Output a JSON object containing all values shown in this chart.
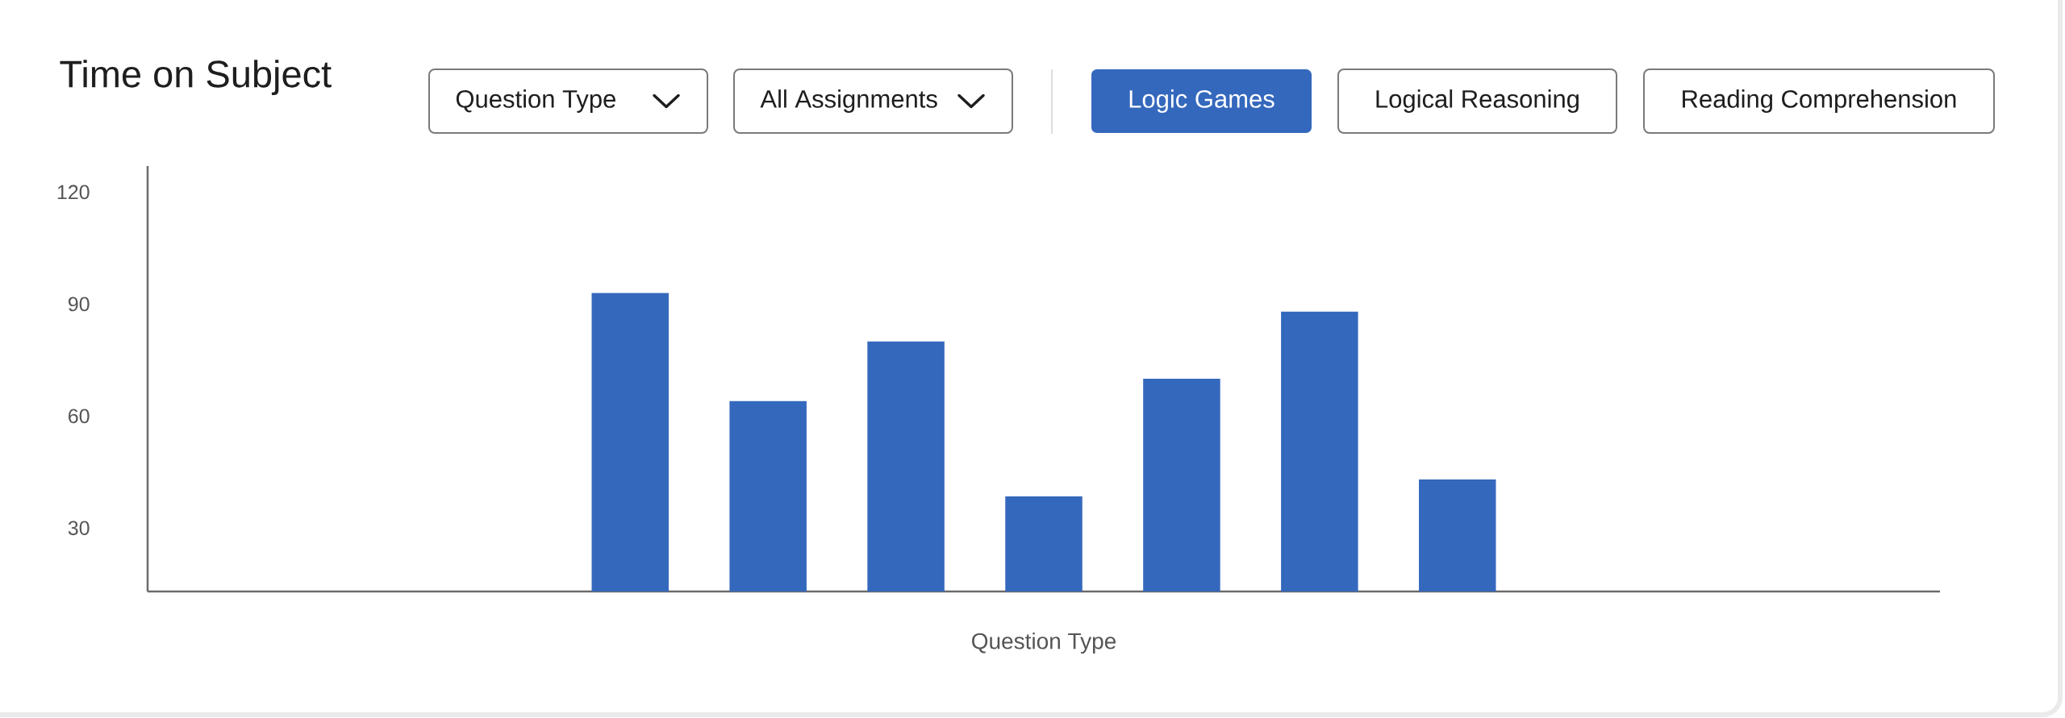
{
  "chart_data": {
    "type": "bar",
    "title": "Time on Subject",
    "xlabel": "Question Type",
    "categories": [
      null,
      null,
      null,
      null,
      null,
      null,
      null,
      null,
      null,
      null,
      null,
      null,
      null
    ],
    "values": [
      null,
      null,
      null,
      93,
      64,
      80,
      38.5,
      70,
      88,
      43,
      null,
      null,
      null
    ],
    "color": "#3468bd",
    "ylim": [
      13,
      127
    ],
    "yticks": [
      30,
      60,
      90,
      120
    ],
    "annotations": [
      "Question Type",
      "All Assignments",
      "Logic Games",
      "Logical Reasoning",
      "Reading Comprehension"
    ]
  }
}
